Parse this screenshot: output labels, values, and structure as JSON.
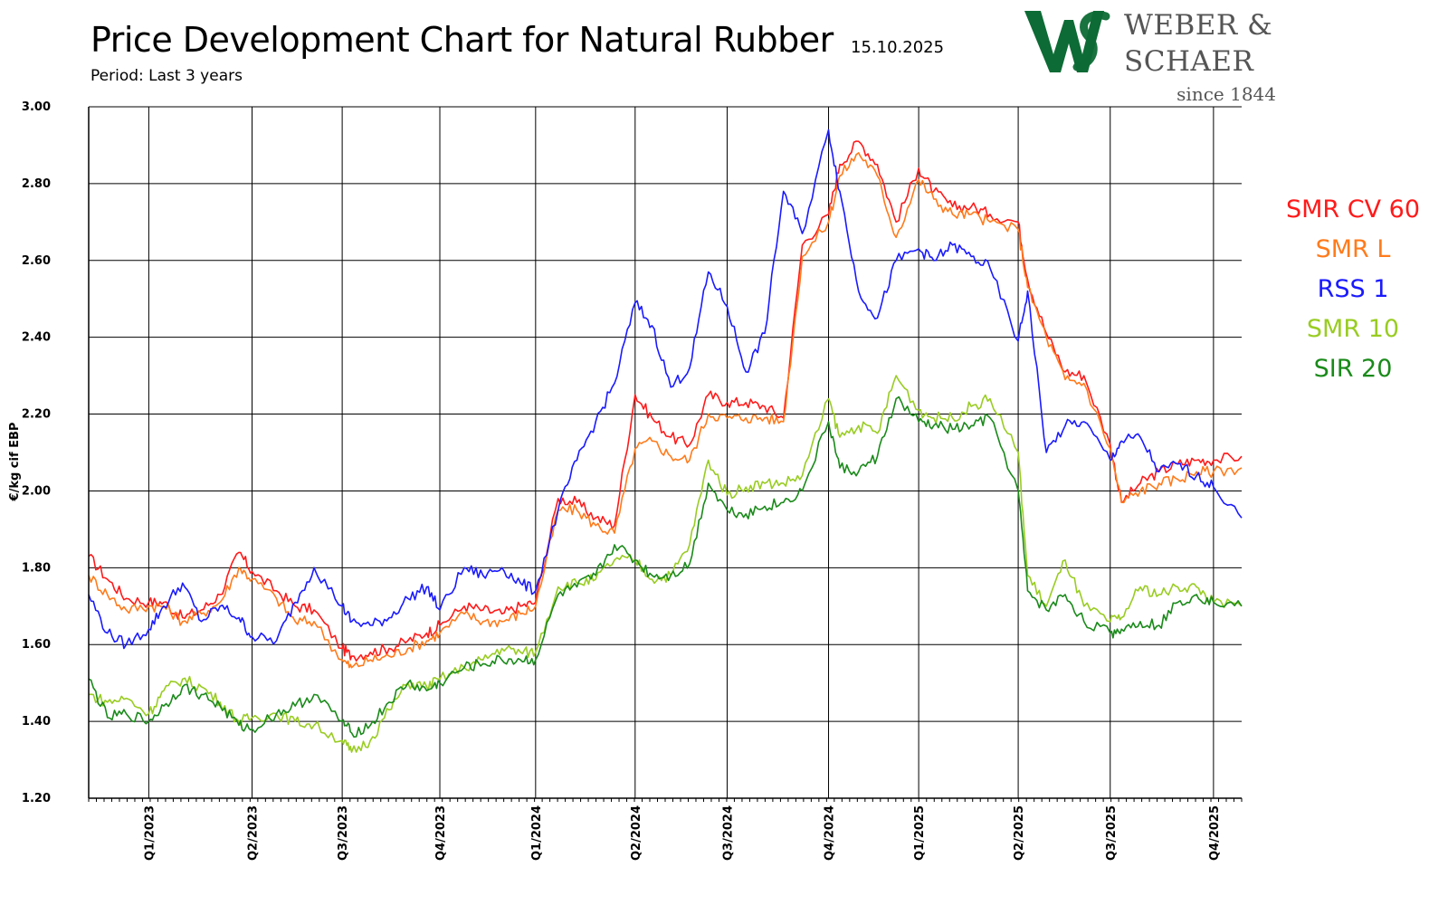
{
  "header": {
    "title": "Price Development Chart for Natural Rubber",
    "date": "15.10.2025",
    "period": "Period: Last 3 years"
  },
  "logo": {
    "line1": "WEBER &",
    "line2": "SCHAER",
    "since": "since 1844",
    "brand_color": "#0d6b35"
  },
  "chart_data": {
    "type": "line",
    "title": "Price Development Chart for Natural Rubber",
    "ylabel": "€/kg cif EBP",
    "xlabel": "",
    "ylim": [
      1.2,
      3.0
    ],
    "xlim": [
      2022.8,
      2025.87
    ],
    "yticks": [
      "1.20",
      "1.40",
      "1.60",
      "1.80",
      "2.00",
      "2.20",
      "2.40",
      "2.60",
      "2.80",
      "3.00"
    ],
    "xticks": [
      {
        "label": "Q1/2023",
        "x": 2022.96
      },
      {
        "label": "Q2/2023",
        "x": 2023.235
      },
      {
        "label": "Q3/2023",
        "x": 2023.475
      },
      {
        "label": "Q4/2023",
        "x": 2023.735
      },
      {
        "label": "Q1/2024",
        "x": 2023.99
      },
      {
        "label": "Q2/2024",
        "x": 2024.255
      },
      {
        "label": "Q3/2024",
        "x": 2024.5
      },
      {
        "label": "Q4/2024",
        "x": 2024.77
      },
      {
        "label": "Q1/2025",
        "x": 2025.01
      },
      {
        "label": "Q2/2025",
        "x": 2025.275
      },
      {
        "label": "Q3/2025",
        "x": 2025.52
      },
      {
        "label": "Q4/2025",
        "x": 2025.795
      }
    ],
    "grid": true,
    "legend_position": "right",
    "x": [
      2022.8,
      2022.85,
      2022.9,
      2022.96,
      2023.0,
      2023.05,
      2023.1,
      2023.15,
      2023.2,
      2023.235,
      2023.3,
      2023.35,
      2023.4,
      2023.475,
      2023.5,
      2023.55,
      2023.6,
      2023.65,
      2023.7,
      2023.735,
      2023.8,
      2023.85,
      2023.9,
      2023.95,
      2023.99,
      2024.05,
      2024.1,
      2024.15,
      2024.2,
      2024.255,
      2024.3,
      2024.35,
      2024.4,
      2024.45,
      2024.5,
      2024.55,
      2024.6,
      2024.65,
      2024.7,
      2024.77,
      2024.8,
      2024.85,
      2024.9,
      2024.95,
      2025.01,
      2025.05,
      2025.1,
      2025.15,
      2025.2,
      2025.275,
      2025.3,
      2025.35,
      2025.4,
      2025.45,
      2025.52,
      2025.55,
      2025.6,
      2025.65,
      2025.7,
      2025.75,
      2025.795,
      2025.87
    ],
    "series": [
      {
        "name": "SMR CV 60",
        "color": "#ff1a1a",
        "values": [
          1.83,
          1.77,
          1.72,
          1.71,
          1.71,
          1.67,
          1.69,
          1.73,
          1.84,
          1.79,
          1.74,
          1.7,
          1.69,
          1.59,
          1.57,
          1.58,
          1.59,
          1.61,
          1.63,
          1.65,
          1.7,
          1.69,
          1.68,
          1.7,
          1.71,
          1.98,
          1.97,
          1.93,
          1.91,
          2.25,
          2.19,
          2.14,
          2.12,
          2.25,
          2.23,
          2.23,
          2.22,
          2.19,
          2.64,
          2.72,
          2.85,
          2.91,
          2.85,
          2.7,
          2.84,
          2.78,
          2.74,
          2.74,
          2.72,
          2.7,
          2.55,
          2.41,
          2.31,
          2.3,
          2.12,
          1.97,
          2.02,
          2.05,
          2.07,
          2.08,
          2.08,
          2.09
        ]
      },
      {
        "name": "SMR L",
        "color": "#ff7b1c",
        "values": [
          1.78,
          1.73,
          1.69,
          1.7,
          1.7,
          1.66,
          1.68,
          1.71,
          1.8,
          1.77,
          1.72,
          1.66,
          1.66,
          1.56,
          1.54,
          1.56,
          1.57,
          1.59,
          1.61,
          1.63,
          1.68,
          1.66,
          1.66,
          1.68,
          1.7,
          1.95,
          1.95,
          1.91,
          1.89,
          2.11,
          2.13,
          2.09,
          2.08,
          2.2,
          2.19,
          2.19,
          2.19,
          2.18,
          2.61,
          2.7,
          2.82,
          2.88,
          2.82,
          2.66,
          2.81,
          2.76,
          2.72,
          2.72,
          2.7,
          2.68,
          2.53,
          2.4,
          2.29,
          2.28,
          2.11,
          1.97,
          2.0,
          2.02,
          2.03,
          2.05,
          2.05,
          2.06
        ]
      },
      {
        "name": "RSS 1",
        "color": "#1a1aff",
        "values": [
          1.73,
          1.63,
          1.6,
          1.64,
          1.7,
          1.76,
          1.66,
          1.7,
          1.67,
          1.62,
          1.61,
          1.71,
          1.8,
          1.7,
          1.66,
          1.65,
          1.67,
          1.72,
          1.75,
          1.69,
          1.8,
          1.78,
          1.8,
          1.76,
          1.74,
          1.95,
          2.08,
          2.18,
          2.28,
          2.49,
          2.43,
          2.27,
          2.32,
          2.57,
          2.48,
          2.31,
          2.41,
          2.78,
          2.67,
          2.94,
          2.78,
          2.52,
          2.45,
          2.6,
          2.63,
          2.6,
          2.64,
          2.61,
          2.58,
          2.39,
          2.52,
          2.1,
          2.17,
          2.18,
          2.08,
          2.13,
          2.14,
          2.05,
          2.07,
          2.04,
          2.01,
          1.93
        ]
      },
      {
        "name": "SMR 10",
        "color": "#99cc22",
        "values": [
          1.47,
          1.45,
          1.46,
          1.42,
          1.48,
          1.51,
          1.49,
          1.45,
          1.4,
          1.41,
          1.42,
          1.4,
          1.39,
          1.35,
          1.32,
          1.35,
          1.43,
          1.5,
          1.49,
          1.51,
          1.54,
          1.56,
          1.59,
          1.58,
          1.58,
          1.75,
          1.76,
          1.77,
          1.82,
          1.82,
          1.77,
          1.78,
          1.86,
          2.08,
          1.99,
          2.01,
          2.02,
          2.02,
          2.04,
          2.24,
          2.14,
          2.17,
          2.15,
          2.3,
          2.21,
          2.19,
          2.19,
          2.22,
          2.24,
          2.1,
          1.78,
          1.7,
          1.82,
          1.7,
          1.66,
          1.67,
          1.75,
          1.73,
          1.75,
          1.75,
          1.71,
          1.7
        ]
      },
      {
        "name": "SIR 20",
        "color": "#1a8a1a",
        "values": [
          1.51,
          1.41,
          1.42,
          1.4,
          1.44,
          1.49,
          1.47,
          1.44,
          1.39,
          1.38,
          1.42,
          1.44,
          1.47,
          1.4,
          1.37,
          1.39,
          1.45,
          1.5,
          1.48,
          1.5,
          1.54,
          1.55,
          1.56,
          1.56,
          1.56,
          1.73,
          1.75,
          1.78,
          1.86,
          1.82,
          1.78,
          1.78,
          1.81,
          2.02,
          1.95,
          1.94,
          1.96,
          1.97,
          2.0,
          2.18,
          2.06,
          2.05,
          2.09,
          2.24,
          2.18,
          2.17,
          2.16,
          2.17,
          2.19,
          2.0,
          1.74,
          1.69,
          1.73,
          1.66,
          1.63,
          1.64,
          1.66,
          1.65,
          1.71,
          1.73,
          1.71,
          1.7
        ]
      }
    ]
  }
}
